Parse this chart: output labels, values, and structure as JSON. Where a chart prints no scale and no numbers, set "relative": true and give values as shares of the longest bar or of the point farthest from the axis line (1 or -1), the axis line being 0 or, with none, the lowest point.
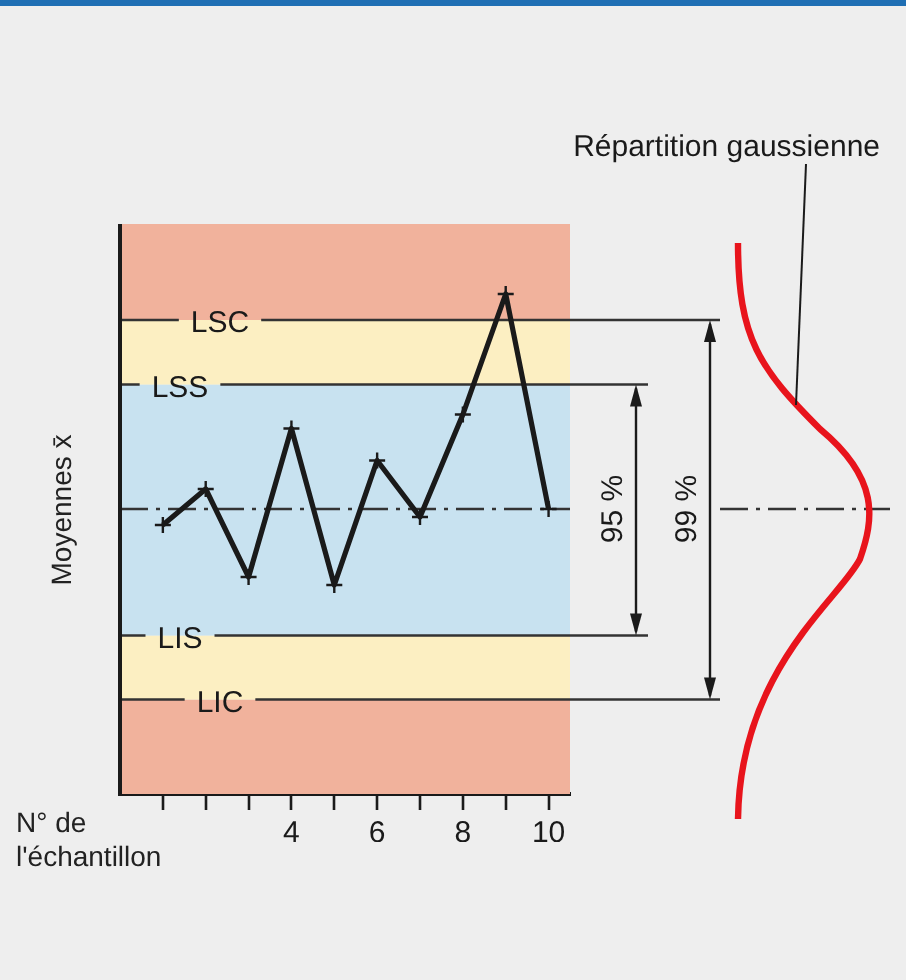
{
  "chart_data": {
    "type": "line",
    "relative": true,
    "ylabel": "Moyennes x̄",
    "xlabel": "N° de l'échantillon",
    "x": [
      1,
      2,
      3,
      4,
      5,
      6,
      7,
      8,
      9,
      10
    ],
    "xlim": [
      0,
      10.5
    ],
    "xticks": [
      {
        "value": 1,
        "label": null
      },
      {
        "value": 2,
        "label": null
      },
      {
        "value": 3,
        "label": null
      },
      4,
      {
        "value": 5,
        "label": null
      },
      6,
      {
        "value": 7,
        "label": null
      },
      8,
      {
        "value": 9,
        "label": null
      },
      10
    ],
    "series": [
      {
        "color": "#1a1a1a",
        "values": [
          0.538,
          0.61,
          0.434,
          0.731,
          0.418,
          0.667,
          0.554,
          0.759,
          1,
          0.57
        ]
      }
    ],
    "marker": "cross",
    "legend": false,
    "grid": false,
    "bands": [
      {
        "axis": "y",
        "from": 0,
        "to": 0.189,
        "color": "#f1b29c"
      },
      {
        "axis": "y",
        "from": 0.189,
        "to": 0.317,
        "color": "#fcefc2"
      },
      {
        "axis": "y",
        "from": 0.317,
        "to": 0.819,
        "color": "#c8e2f0"
      },
      {
        "axis": "y",
        "from": 0.819,
        "to": 0.948,
        "color": "#fcefc2"
      },
      {
        "axis": "y",
        "from": 0.948,
        "to": 1.14,
        "color": "#f1b29c"
      }
    ],
    "ref_lines": [
      {
        "axis": "y",
        "value": 0.948,
        "label": "LSC"
      },
      {
        "axis": "y",
        "value": 0.819,
        "label": "LSS"
      },
      {
        "axis": "y",
        "value": 0.57,
        "line_style": "dashed"
      },
      {
        "axis": "y",
        "value": 0.317,
        "label": "LIS"
      },
      {
        "axis": "y",
        "value": 0.189,
        "label": "LIC"
      }
    ],
    "annotations": [
      "95 %",
      "99 %",
      "Répartition gaussienne"
    ]
  }
}
